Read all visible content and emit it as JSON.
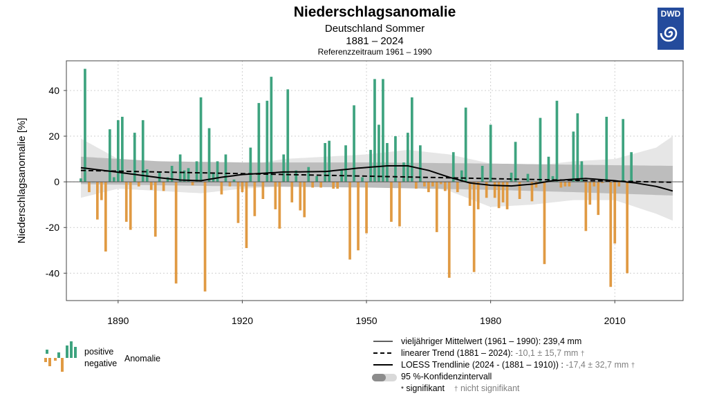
{
  "header": {
    "title": "Niederschlagsanomalie",
    "subtitle": "Deutschland Sommer",
    "period": "1881 – 2024",
    "reference": "Referenzzeitraum 1961 – 1990",
    "logo_text": "DWD"
  },
  "colors": {
    "positive": "#3ea37f",
    "negative": "#e09a43",
    "ci_outer": "#e6e6e6",
    "ci_inner": "#bdbdbd",
    "logo": "#244b9c"
  },
  "legend": {
    "positive": "positive",
    "negative": "negative",
    "anomaly": "Anomalie",
    "mean_label": "vieljähriger Mittelwert (1961 – 1990): 239,4 mm",
    "trend_label": "linearer Trend (1881 – 2024): ",
    "trend_value": "-10,1 ± 15,7 mm",
    "trend_mark": "†",
    "loess_label": "LOESS Trendlinie (2024 - (1881 – 1910)) : ",
    "loess_value": "-17,4 ± 32,7 mm",
    "loess_mark": "†",
    "ci_label": "95 %-Konfidenzintervall",
    "sig_mark": "*",
    "sig_label": "signifikant",
    "nsig_mark": "†",
    "nsig_label": "nicht signifikant"
  },
  "chart_data": {
    "type": "bar",
    "title": "Niederschlagsanomalie",
    "ylabel": "Niederschlagsanomalie [%]",
    "xlim": [
      1877.5,
      2026.5
    ],
    "ylim": [
      -52,
      53
    ],
    "yticks": [
      -40,
      -20,
      0,
      20,
      40
    ],
    "xticks": [
      1890,
      1920,
      1950,
      1980,
      2010
    ],
    "grid": true,
    "start_year": 1881,
    "values": [
      1.5,
      49.5,
      -4.5,
      0,
      -16.5,
      -8,
      -30.5,
      23,
      2,
      27,
      28.5,
      -17.5,
      -21,
      21.5,
      -2,
      27,
      5.5,
      -3.5,
      -24,
      4.5,
      -4,
      2,
      7,
      -44.5,
      12,
      5,
      6,
      -1.5,
      9,
      37,
      -48,
      23.5,
      4,
      9,
      -5.5,
      12,
      -2,
      1,
      -18,
      -4.5,
      -29,
      15,
      -15,
      34.5,
      -7.5,
      35.5,
      46,
      -12,
      -20.5,
      12,
      40.5,
      -9,
      5,
      -12.5,
      -15.5,
      6.5,
      -2.5,
      2.5,
      -2.5,
      17,
      18,
      -3,
      -3,
      5.5,
      16,
      -34,
      33.5,
      -30,
      2,
      -22.5,
      14,
      45,
      25,
      45,
      17,
      -17.5,
      20,
      -19.5,
      8.5,
      21.5,
      37,
      -3,
      16,
      -2,
      -4.5,
      -2,
      -22,
      -1,
      -4,
      -42,
      13,
      -4.5,
      5,
      32.5,
      -10.5,
      -39.5,
      -12,
      7,
      -7,
      25,
      -7,
      -11.5,
      -9,
      -12,
      4,
      17.5,
      -7.5,
      0,
      3.5,
      -8.5,
      -2.5,
      28,
      -36,
      11,
      2.5,
      35.5,
      -2.5,
      -2,
      -2,
      22,
      30,
      9,
      -21.5,
      -10,
      -2,
      -14.5,
      -0.5,
      28.5,
      -46,
      -27,
      -2,
      27.5,
      -40,
      13
    ],
    "loess": [
      [
        1881,
        6.2
      ],
      [
        1890,
        4.2
      ],
      [
        1900,
        1.8
      ],
      [
        1905,
        0.8
      ],
      [
        1910,
        0.5
      ],
      [
        1915,
        2.0
      ],
      [
        1920,
        3.2
      ],
      [
        1930,
        4.3
      ],
      [
        1940,
        4.5
      ],
      [
        1948,
        6.0
      ],
      [
        1955,
        7.0
      ],
      [
        1960,
        7.0
      ],
      [
        1965,
        5.0
      ],
      [
        1970,
        2.0
      ],
      [
        1975,
        -0.5
      ],
      [
        1980,
        -1.5
      ],
      [
        1985,
        -1.8
      ],
      [
        1990,
        -1.0
      ],
      [
        1995,
        0.5
      ],
      [
        2003,
        1.5
      ],
      [
        2010,
        0.5
      ],
      [
        2015,
        -0.5
      ],
      [
        2020,
        -2.0
      ],
      [
        2024,
        -4.0
      ]
    ],
    "trend": [
      [
        1881,
        5.0
      ],
      [
        2024,
        -0.2
      ]
    ],
    "ci_outer_upper": [
      [
        1881,
        19
      ],
      [
        1890,
        10
      ],
      [
        1900,
        6
      ],
      [
        1910,
        5
      ],
      [
        1920,
        7
      ],
      [
        1930,
        10
      ],
      [
        1940,
        11
      ],
      [
        1950,
        12
      ],
      [
        1960,
        14
      ],
      [
        1970,
        12
      ],
      [
        1980,
        8
      ],
      [
        1990,
        7
      ],
      [
        2000,
        9
      ],
      [
        2010,
        10
      ],
      [
        2020,
        15
      ],
      [
        2024,
        20
      ]
    ],
    "ci_outer_lower": [
      [
        1881,
        -7
      ],
      [
        1890,
        -3
      ],
      [
        1900,
        -4
      ],
      [
        1910,
        -5
      ],
      [
        1920,
        -3
      ],
      [
        1930,
        -2
      ],
      [
        1940,
        -1
      ],
      [
        1950,
        1
      ],
      [
        1960,
        0
      ],
      [
        1970,
        -4
      ],
      [
        1980,
        -11
      ],
      [
        1990,
        -10
      ],
      [
        2000,
        -8
      ],
      [
        2010,
        -8
      ],
      [
        2020,
        -14
      ],
      [
        2024,
        -17
      ]
    ],
    "ci_inner_upper": [
      [
        1881,
        11
      ],
      [
        1900,
        9
      ],
      [
        1920,
        8.5
      ],
      [
        1950,
        8.5
      ],
      [
        1980,
        8
      ],
      [
        2000,
        7.5
      ],
      [
        2024,
        7
      ]
    ],
    "ci_inner_lower": [
      [
        1881,
        -1
      ],
      [
        1900,
        -1.5
      ],
      [
        1920,
        -2
      ],
      [
        1950,
        -2.5
      ],
      [
        1980,
        -3.5
      ],
      [
        2000,
        -4.5
      ],
      [
        2024,
        -6
      ]
    ]
  }
}
